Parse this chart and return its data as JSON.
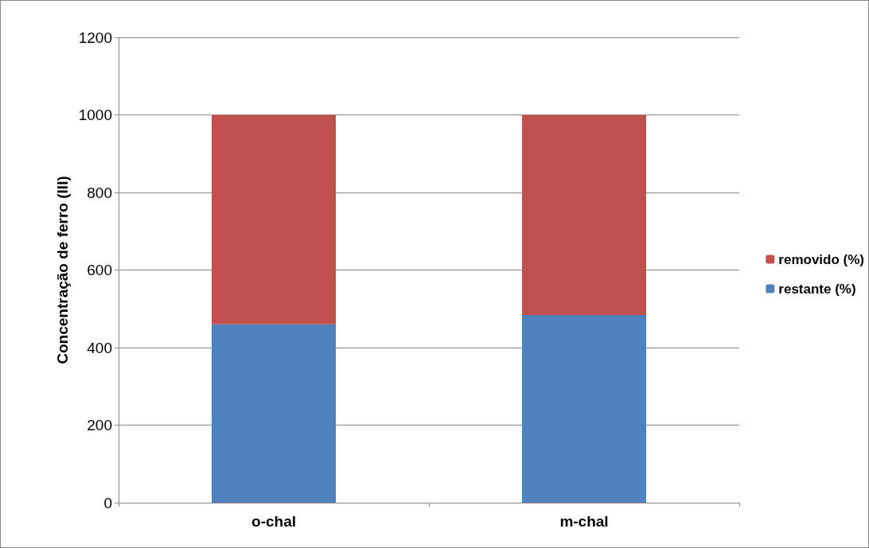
{
  "chart_data": {
    "type": "bar",
    "stacked": true,
    "ylabel": "Concentração de ferro (III)",
    "categories": [
      "o-chal",
      "m-chal"
    ],
    "series": [
      {
        "name": "restante (%)",
        "color": "#4f81bd",
        "values": [
          460,
          484
        ]
      },
      {
        "name": "removido (%)",
        "color": "#c0504d",
        "values": [
          540,
          516
        ]
      }
    ],
    "ylim": [
      0,
      1200
    ],
    "yticks": [
      0,
      200,
      400,
      600,
      800,
      1000,
      1200
    ],
    "grid": "y",
    "legend": "right"
  }
}
